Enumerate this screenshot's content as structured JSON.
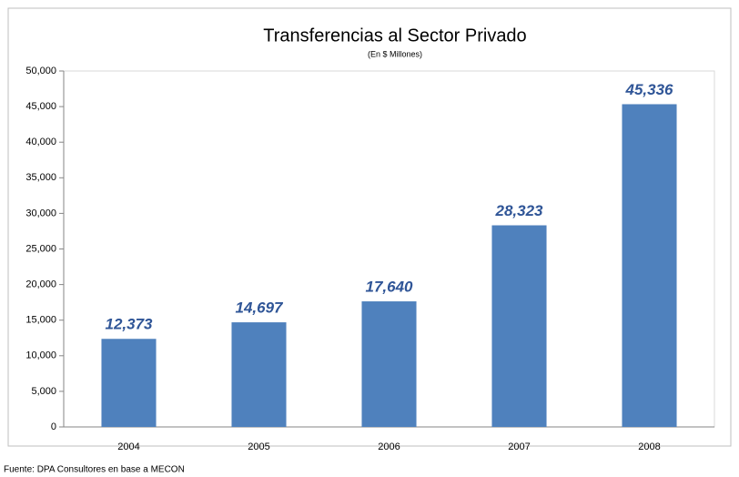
{
  "chart_data": {
    "type": "bar",
    "title": "Transferencias al Sector Privado",
    "subtitle": "(En $ Millones)",
    "categories": [
      "2004",
      "2005",
      "2006",
      "2007",
      "2008"
    ],
    "values": [
      12373,
      14697,
      17640,
      28323,
      45336
    ],
    "value_labels": [
      "12,373",
      "14,697",
      "17,640",
      "28,323",
      "45,336"
    ],
    "color": "#4f81bd",
    "ylim": [
      0,
      50000
    ],
    "yticks": [
      0,
      {
        "value": 5000,
        "label": "5,000"
      },
      {
        "value": 10000,
        "label": "10,000"
      },
      {
        "value": 15000,
        "label": "15,000"
      },
      {
        "value": 20000,
        "label": "20,000"
      },
      {
        "value": 25000,
        "label": "25,000"
      },
      {
        "value": 30000,
        "label": "30,000"
      },
      {
        "value": 35000,
        "label": "35,000"
      },
      {
        "value": 40000,
        "label": "40,000"
      },
      {
        "value": 45000,
        "label": "45,000"
      },
      {
        "value": 50000,
        "label": "50,000"
      }
    ],
    "grid": false,
    "source": "Fuente: DPA Consultores en base a MECON"
  }
}
